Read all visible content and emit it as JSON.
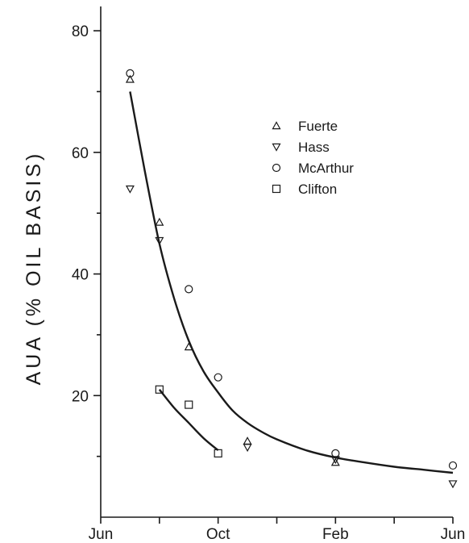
{
  "chart_data": {
    "type": "scatter",
    "title": "",
    "xlabel": "",
    "ylabel": "AUA (% OIL BASIS)",
    "xlim": [
      0,
      12
    ],
    "ylim": [
      0,
      84
    ],
    "grid": false,
    "legend_position": "top-right",
    "x_ticks": [
      {
        "value": 0,
        "label": "Jun"
      },
      {
        "value": 2,
        "label": ""
      },
      {
        "value": 4,
        "label": "Oct"
      },
      {
        "value": 6,
        "label": ""
      },
      {
        "value": 8,
        "label": "Feb"
      },
      {
        "value": 10,
        "label": ""
      },
      {
        "value": 12,
        "label": "Jun"
      }
    ],
    "y_ticks": [
      {
        "value": 20,
        "label": "20"
      },
      {
        "value": 40,
        "label": "40"
      },
      {
        "value": 60,
        "label": "60"
      },
      {
        "value": 80,
        "label": "80"
      }
    ],
    "y_minor_ticks": [
      10,
      30,
      50,
      70
    ],
    "series": [
      {
        "name": "Fuerte",
        "marker": "triangle-up",
        "points": [
          [
            1.0,
            72
          ],
          [
            2.0,
            48.5
          ],
          [
            3.0,
            28
          ],
          [
            5.0,
            12.5
          ],
          [
            8.0,
            9
          ]
        ]
      },
      {
        "name": "Hass",
        "marker": "triangle-down",
        "points": [
          [
            1.0,
            54
          ],
          [
            2.0,
            45.5
          ],
          [
            5.0,
            11.5
          ],
          [
            8.0,
            9.5
          ],
          [
            12.0,
            5.5
          ]
        ]
      },
      {
        "name": "McArthur",
        "marker": "circle",
        "points": [
          [
            1.0,
            73
          ],
          [
            3.0,
            37.5
          ],
          [
            4.0,
            23
          ],
          [
            8.0,
            10.5
          ],
          [
            12.0,
            8.5
          ]
        ]
      },
      {
        "name": "Clifton",
        "marker": "square",
        "points": [
          [
            2.0,
            21
          ],
          [
            3.0,
            18.5
          ],
          [
            4.0,
            10.5
          ]
        ]
      }
    ],
    "fit_curves": [
      {
        "segments": [
          [
            [
              1.0,
              70
            ],
            [
              1.5,
              57
            ],
            [
              2.0,
              45
            ],
            [
              2.5,
              36
            ],
            [
              3.0,
              29
            ],
            [
              3.5,
              24
            ],
            [
              4.0,
              20.5
            ],
            [
              4.5,
              17.5
            ],
            [
              5.0,
              15.5
            ],
            [
              5.5,
              14
            ],
            [
              6.0,
              12.8
            ],
            [
              7.0,
              11
            ],
            [
              8.0,
              9.8
            ],
            [
              9.0,
              9
            ],
            [
              10.0,
              8.3
            ],
            [
              11.0,
              7.8
            ],
            [
              12.0,
              7.3
            ]
          ]
        ]
      },
      {
        "segments": [
          [
            [
              2.0,
              21
            ],
            [
              2.5,
              18
            ],
            [
              3.0,
              15.5
            ],
            [
              3.5,
              13
            ],
            [
              4.0,
              11
            ]
          ]
        ]
      }
    ]
  }
}
